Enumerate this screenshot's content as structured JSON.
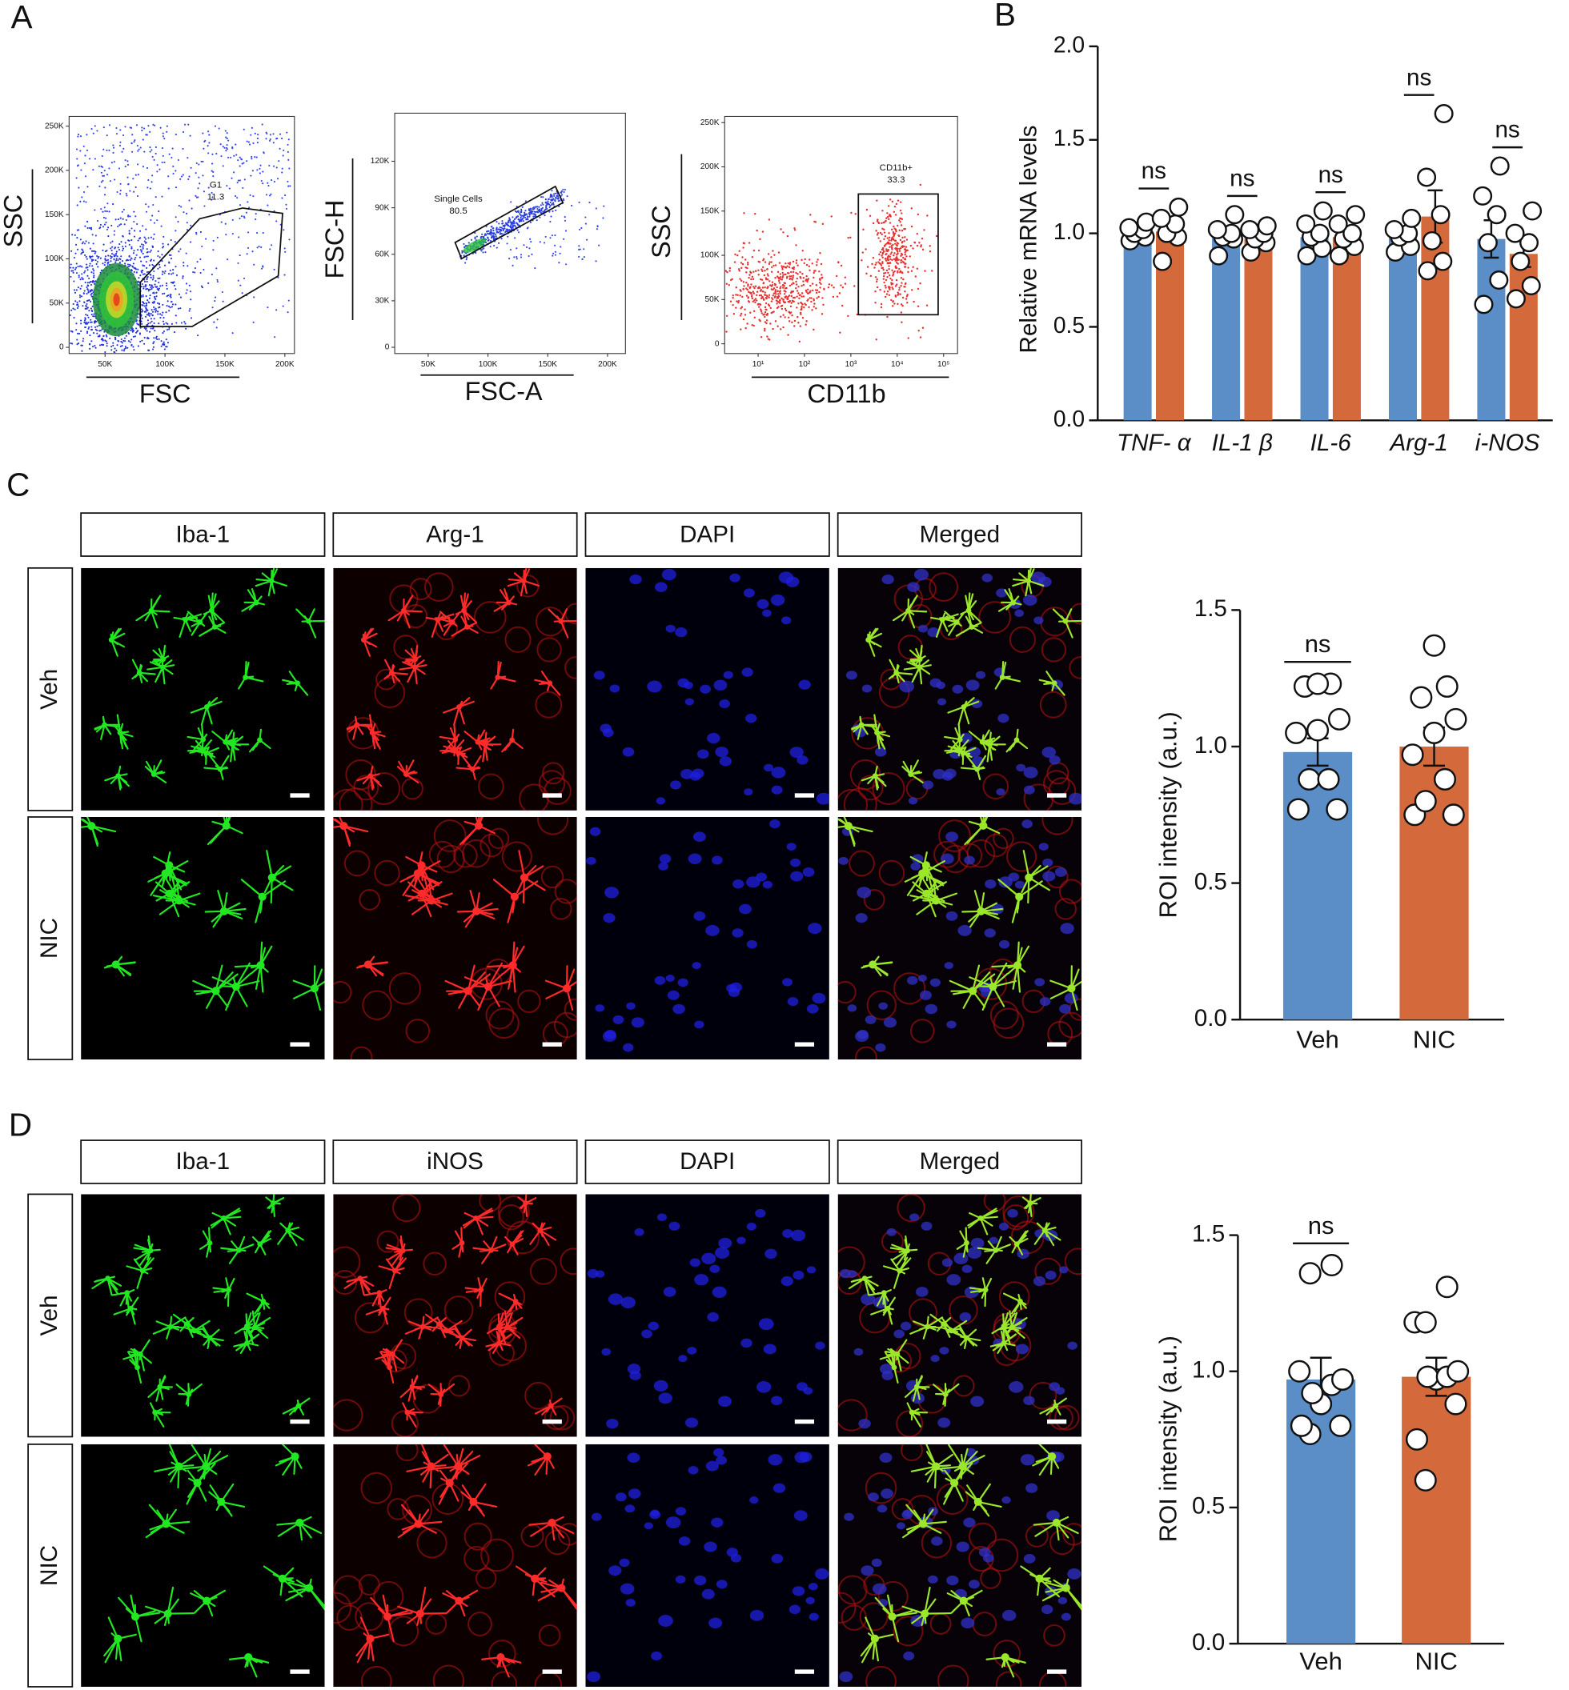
{
  "panel_labels": [
    "A",
    "B",
    "C",
    "D"
  ],
  "micrographs": [
    {
      "columns": [
        "Iba-1",
        "Arg-1",
        "DAPI",
        "Merged"
      ],
      "rows": [
        "Veh",
        "NIC"
      ]
    },
    {
      "columns": [
        "Iba-1",
        "iNOS",
        "DAPI",
        "Merged"
      ],
      "rows": [
        "Veh",
        "NIC"
      ]
    }
  ],
  "chart_data": [
    {
      "type": "flow",
      "xlabel": "FSC",
      "ylabel": "SSC",
      "xlim": [
        20000,
        208000
      ],
      "ylim": [
        -7000,
        261000
      ],
      "xticks": [
        {
          "value": 50000,
          "label": "50K"
        },
        {
          "value": 100000,
          "label": "100K"
        },
        {
          "value": 150000,
          "label": "150K"
        },
        {
          "value": 200000,
          "label": "200K"
        }
      ],
      "yticks": [
        0,
        {
          "value": 50000,
          "label": "50K"
        },
        {
          "value": 100000,
          "label": "100K"
        },
        {
          "value": 150000,
          "label": "150K"
        },
        {
          "value": 200000,
          "label": "200K"
        },
        {
          "value": 250000,
          "label": "250K"
        }
      ],
      "gate": {
        "name": "G1",
        "value": 11.3
      }
    },
    {
      "type": "flow",
      "xlabel": "FSC-A",
      "ylabel": "FSC-H",
      "xlim": [
        22000,
        215000
      ],
      "ylim": [
        -4000,
        151000
      ],
      "xticks": [
        {
          "value": 50000,
          "label": "50K"
        },
        {
          "value": 100000,
          "label": "100K"
        },
        {
          "value": 150000,
          "label": "150K"
        },
        {
          "value": 200000,
          "label": "200K"
        }
      ],
      "yticks": [
        0,
        {
          "value": 30000,
          "label": "30K"
        },
        {
          "value": 60000,
          "label": "60K"
        },
        {
          "value": 90000,
          "label": "90K"
        },
        {
          "value": 120000,
          "label": "120K"
        }
      ],
      "gate": {
        "name": "Single Cells",
        "value": 80.5
      }
    },
    {
      "type": "flow",
      "xlabel": "CD11b",
      "ylabel": "SSC",
      "xlog": true,
      "xlim": [
        1.9,
        200000
      ],
      "ylim": [
        -11000,
        257000
      ],
      "xticks": [
        {
          "value": 10,
          "label": "10¹"
        },
        {
          "value": 100,
          "label": "10²"
        },
        {
          "value": 1000,
          "label": "10³"
        },
        {
          "value": 10000,
          "label": "10⁴"
        },
        {
          "value": 100000,
          "label": "10⁵"
        }
      ],
      "yticks": [
        0,
        {
          "value": 50000,
          "label": "50K"
        },
        {
          "value": 100000,
          "label": "100K"
        },
        {
          "value": 150000,
          "label": "150K"
        },
        {
          "value": 200000,
          "label": "200K"
        },
        {
          "value": 250000,
          "label": "250K"
        }
      ],
      "gate": {
        "name": "CD11b+",
        "value": 33.3
      }
    },
    {
      "type": "bar",
      "ylabel": "Relative mRNA levels",
      "categories": [
        "TNF- α",
        "IL-1 β",
        "IL-6",
        "Arg-1",
        "i-NOS"
      ],
      "ylim": [
        0,
        2
      ],
      "yticks": [
        {
          "value": 0,
          "label": "0.0"
        },
        0.5,
        {
          "value": 1,
          "label": "1.0"
        },
        1.5,
        {
          "value": 2,
          "label": "2.0"
        }
      ],
      "annotations": [
        "ns",
        "ns",
        "ns",
        "ns",
        "ns"
      ],
      "series": [
        {
          "color": "#5b8ec6",
          "values": [
            1.0,
            0.98,
            0.98,
            0.98,
            0.97
          ],
          "errors": [
            0.03,
            0.04,
            0.04,
            0.04,
            0.1
          ],
          "points": [
            [
              0.96,
              0.98,
              1.0,
              1.02,
              1.03,
              1.06
            ],
            [
              0.88,
              0.97,
              0.98,
              1.0,
              1.02,
              1.1
            ],
            [
              0.88,
              0.92,
              0.98,
              1.0,
              1.05,
              1.12
            ],
            [
              0.9,
              0.93,
              0.98,
              1.0,
              1.02,
              1.08
            ],
            [
              0.62,
              0.75,
              0.95,
              1.1,
              1.2,
              1.36
            ]
          ]
        },
        {
          "color": "#d4693b",
          "values": [
            1.01,
            0.98,
            0.98,
            1.09,
            0.89
          ],
          "errors": [
            0.05,
            0.03,
            0.04,
            0.14,
            0.07
          ],
          "points": [
            [
              0.85,
              0.98,
              1.0,
              1.05,
              1.08,
              1.14
            ],
            [
              0.9,
              0.95,
              0.97,
              1.0,
              1.02,
              1.04
            ],
            [
              0.88,
              0.93,
              0.97,
              1.0,
              1.05,
              1.1
            ],
            [
              0.8,
              0.85,
              0.96,
              1.1,
              1.3,
              1.64
            ],
            [
              0.65,
              0.72,
              0.85,
              0.95,
              1.0,
              1.12
            ]
          ]
        }
      ]
    },
    {
      "type": "bar",
      "ylabel": "ROI intensity (a.u.)",
      "categories": [
        "Veh",
        "NIC"
      ],
      "colors": [
        "#5b8ec6",
        "#d4693b"
      ],
      "values": [
        0.98,
        1.0
      ],
      "errors": [
        0.05,
        0.07
      ],
      "points": [
        [
          0.77,
          0.77,
          0.88,
          0.88,
          1.05,
          1.06,
          1.1,
          1.22,
          1.23,
          1.23
        ],
        [
          0.75,
          0.75,
          0.8,
          0.88,
          0.97,
          1.05,
          1.1,
          1.18,
          1.22,
          1.37
        ]
      ],
      "ylim": [
        0,
        1.5
      ],
      "yticks": [
        {
          "value": 0,
          "label": "0.0"
        },
        0.5,
        {
          "value": 1,
          "label": "1.0"
        },
        1.5
      ],
      "annotations": [
        "ns"
      ]
    },
    {
      "type": "bar",
      "ylabel": "ROI intensity (a.u.)",
      "categories": [
        "Veh",
        "NIC"
      ],
      "colors": [
        "#5b8ec6",
        "#d4693b"
      ],
      "values": [
        0.97,
        0.98
      ],
      "errors": [
        0.08,
        0.07
      ],
      "points": [
        [
          0.77,
          0.8,
          0.8,
          0.88,
          0.92,
          0.95,
          0.97,
          1.0,
          1.36,
          1.39
        ],
        [
          0.6,
          0.75,
          0.88,
          0.97,
          0.98,
          0.98,
          1.0,
          1.18,
          1.18,
          1.31
        ]
      ],
      "ylim": [
        0,
        1.5
      ],
      "yticks": [
        {
          "value": 0,
          "label": "0.0"
        },
        0.5,
        {
          "value": 1,
          "label": "1.0"
        },
        1.5
      ],
      "annotations": [
        "ns"
      ]
    }
  ]
}
